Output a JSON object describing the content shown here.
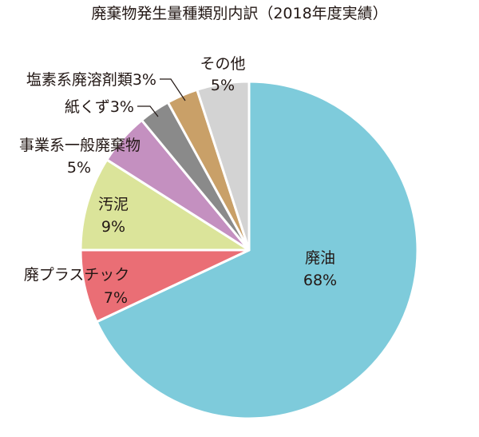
{
  "chart_data": {
    "type": "pie",
    "title": "廃棄物発生量種類別内訳（2018年度実績）",
    "slices": [
      {
        "name": "廃油",
        "value": 68,
        "label": "68%",
        "color": "#7ecbdb"
      },
      {
        "name": "廃プラスチック",
        "value": 7,
        "label": "7%",
        "color": "#ea6e75"
      },
      {
        "name": "汚泥",
        "value": 9,
        "label": "9%",
        "color": "#dbe49a"
      },
      {
        "name": "事業系一般廃棄物",
        "value": 5,
        "label": "5%",
        "color": "#c490c0"
      },
      {
        "name": "紙くず",
        "value": 3,
        "label": "3%",
        "color": "#8a8a8a"
      },
      {
        "name": "塩素系廃溶剤類",
        "value": 3,
        "label": "3%",
        "color": "#c9a068"
      },
      {
        "name": "その他",
        "value": 5,
        "label": "5%",
        "color": "#d3d3d3"
      }
    ]
  }
}
